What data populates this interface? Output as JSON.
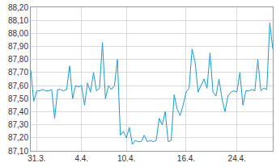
{
  "chart_data": {
    "type": "line",
    "categories": [
      null,
      null,
      "31.3.",
      null,
      null,
      null,
      null,
      null,
      null,
      null,
      null,
      null,
      null,
      null,
      null,
      null,
      null,
      "4.4.",
      null,
      null,
      null,
      null,
      null,
      null,
      null,
      null,
      null,
      null,
      null,
      null,
      null,
      null,
      "10.4.",
      null,
      null,
      null,
      null,
      null,
      null,
      null,
      null,
      null,
      null,
      null,
      null,
      null,
      null,
      null,
      null,
      null,
      null,
      null,
      "16.4.",
      null,
      null,
      null,
      null,
      null,
      null,
      null,
      null,
      null,
      null,
      null,
      null,
      null,
      null,
      null,
      null,
      "24.4.",
      null,
      null,
      null,
      null,
      null,
      null,
      null,
      null,
      null,
      null,
      null,
      null
    ],
    "values": [
      87.72,
      87.48,
      87.56,
      87.56,
      87.57,
      87.56,
      87.56,
      87.57,
      87.35,
      87.57,
      87.57,
      87.56,
      87.57,
      87.75,
      87.5,
      87.6,
      87.59,
      87.6,
      87.45,
      87.62,
      87.55,
      87.7,
      87.56,
      87.58,
      87.93,
      87.5,
      87.6,
      87.57,
      87.6,
      87.8,
      87.22,
      87.25,
      87.2,
      87.28,
      87.15,
      87.18,
      87.17,
      87.17,
      87.22,
      87.17,
      87.18,
      87.17,
      87.18,
      87.35,
      87.3,
      87.4,
      87.17,
      87.18,
      87.53,
      87.42,
      87.37,
      87.45,
      87.55,
      87.58,
      87.88,
      87.78,
      87.55,
      87.6,
      87.65,
      87.58,
      87.85,
      87.55,
      87.52,
      87.65,
      87.5,
      87.4,
      87.52,
      87.55,
      87.56,
      87.55,
      87.7,
      87.45,
      87.56,
      87.56,
      87.57,
      87.56,
      87.8,
      87.56,
      87.58,
      87.57,
      88.08,
      87.88
    ],
    "color": "#1a9bd7",
    "ylim": [
      87.1,
      88.2
    ],
    "yticks": [
      {
        "value": 87.1,
        "label": "87,10"
      },
      {
        "value": 87.2,
        "label": "87,20"
      },
      {
        "value": 87.3,
        "label": "87,30"
      },
      {
        "value": 87.4,
        "label": "87,40"
      },
      {
        "value": 87.5,
        "label": "87,50"
      },
      {
        "value": 87.6,
        "label": "87,60"
      },
      {
        "value": 87.7,
        "label": "87,70"
      },
      {
        "value": 87.8,
        "label": "87,80"
      },
      {
        "value": 87.9,
        "label": "87,90"
      },
      {
        "value": 88.0,
        "label": "88,00"
      },
      {
        "value": 88.1,
        "label": "88,10"
      },
      {
        "value": 88.2,
        "label": "88,20"
      }
    ],
    "grid": true
  }
}
